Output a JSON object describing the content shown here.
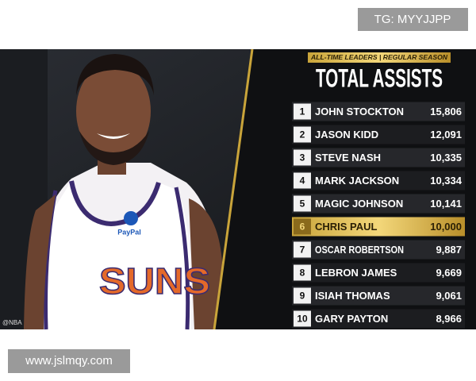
{
  "watermark_top": "TG: MYYJJPP",
  "watermark_bottom": "www.jslmqy.com",
  "photo": {
    "credit": "@NBA",
    "jersey_text": "SUNS",
    "sponsor": "PayPal"
  },
  "leaderboard": {
    "banner": "ALL-TIME LEADERS | REGULAR SEASON",
    "title": "TOTAL ASSISTS",
    "highlight_rank": 6,
    "rows": [
      {
        "rank": 1,
        "name": "JOHN STOCKTON",
        "value": "15,806"
      },
      {
        "rank": 2,
        "name": "JASON KIDD",
        "value": "12,091"
      },
      {
        "rank": 3,
        "name": "STEVE NASH",
        "value": "10,335"
      },
      {
        "rank": 4,
        "name": "MARK JACKSON",
        "value": "10,334"
      },
      {
        "rank": 5,
        "name": "MAGIC JOHNSON",
        "value": "10,141"
      },
      {
        "rank": 6,
        "name": "CHRIS PAUL",
        "value": "10,000"
      },
      {
        "rank": 7,
        "name": "OSCAR ROBERTSON",
        "value": "9,887"
      },
      {
        "rank": 8,
        "name": "LEBRON JAMES",
        "value": "9,669"
      },
      {
        "rank": 9,
        "name": "ISIAH THOMAS",
        "value": "9,061"
      },
      {
        "rank": 10,
        "name": "GARY PAYTON",
        "value": "8,966"
      }
    ]
  }
}
